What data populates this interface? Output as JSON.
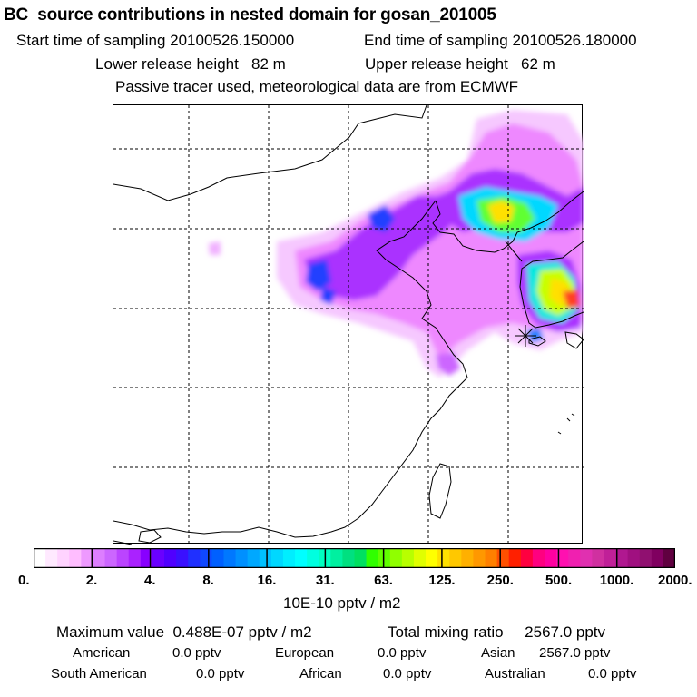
{
  "header": {
    "title": "BC  source contributions in nested domain for gosan_201005",
    "start_time": "Start time of sampling 20100526.150000",
    "end_time": "End time of sampling 20100526.180000",
    "lower_release": "Lower release height   82 m",
    "upper_release": "Upper release height   62 m",
    "tracer_note": "Passive tracer used, meteorological data are from ECMWF"
  },
  "map": {
    "grid": "dashed lat/lon lines",
    "release_marker": "star",
    "colors_low_to_high": [
      "#ffffff",
      "#ff00ff",
      "#7b00ff",
      "#0000ff",
      "#00c8ff",
      "#00ffd0",
      "#80ff00",
      "#ffd000",
      "#ff0000",
      "#ff00a0",
      "#800060"
    ]
  },
  "colorbar": {
    "tick_labels": [
      "0.",
      "2.",
      "4.",
      "8.",
      "16.",
      "31.",
      "63.",
      "125.",
      "250.",
      "500.",
      "1000.",
      "2000."
    ],
    "unit_label": "10E-10 pptv / m2",
    "colors": [
      "#ffffff",
      "#ffe9ff",
      "#ffd3ff",
      "#ffbdff",
      "#ee99ff",
      "#dd7eff",
      "#cc66ff",
      "#bb44ff",
      "#aa22ff",
      "#8800ff",
      "#6a00ff",
      "#5000ff",
      "#3a10ff",
      "#2030ff",
      "#1048ff",
      "#0060ff",
      "#0078ff",
      "#0090ff",
      "#00a8ff",
      "#00c0ff",
      "#00d8ff",
      "#00eeff",
      "#00ffff",
      "#00ffe0",
      "#00ffc0",
      "#00f0a0",
      "#00e080",
      "#00e060",
      "#30ff00",
      "#60ff00",
      "#90ff00",
      "#b8ff00",
      "#e0ff00",
      "#ffff00",
      "#ffe000",
      "#ffc800",
      "#ffb000",
      "#ff9800",
      "#ff8000",
      "#ff5000",
      "#ff2000",
      "#ff0040",
      "#ff0080",
      "#ff00a0",
      "#ff10b0",
      "#f020b0",
      "#e030b0",
      "#d030a0",
      "#c02098",
      "#b01890",
      "#a01080",
      "#901070",
      "#800060",
      "#600040"
    ]
  },
  "footer": {
    "max_value": "Maximum value  0.488E-07 pptv / m2",
    "total_mixing": "Total mixing ratio     2567.0 pptv",
    "american": "American",
    "american_val": "0.0 pptv",
    "european": "European",
    "european_val": "0.0 pptv",
    "asian": "Asian",
    "asian_val": "2567.0 pptv",
    "south_american": "South American",
    "south_american_val": "0.0 pptv",
    "african": "African",
    "african_val": "0.0 pptv",
    "australian": "Australian",
    "australian_val": "0.0 pptv"
  }
}
